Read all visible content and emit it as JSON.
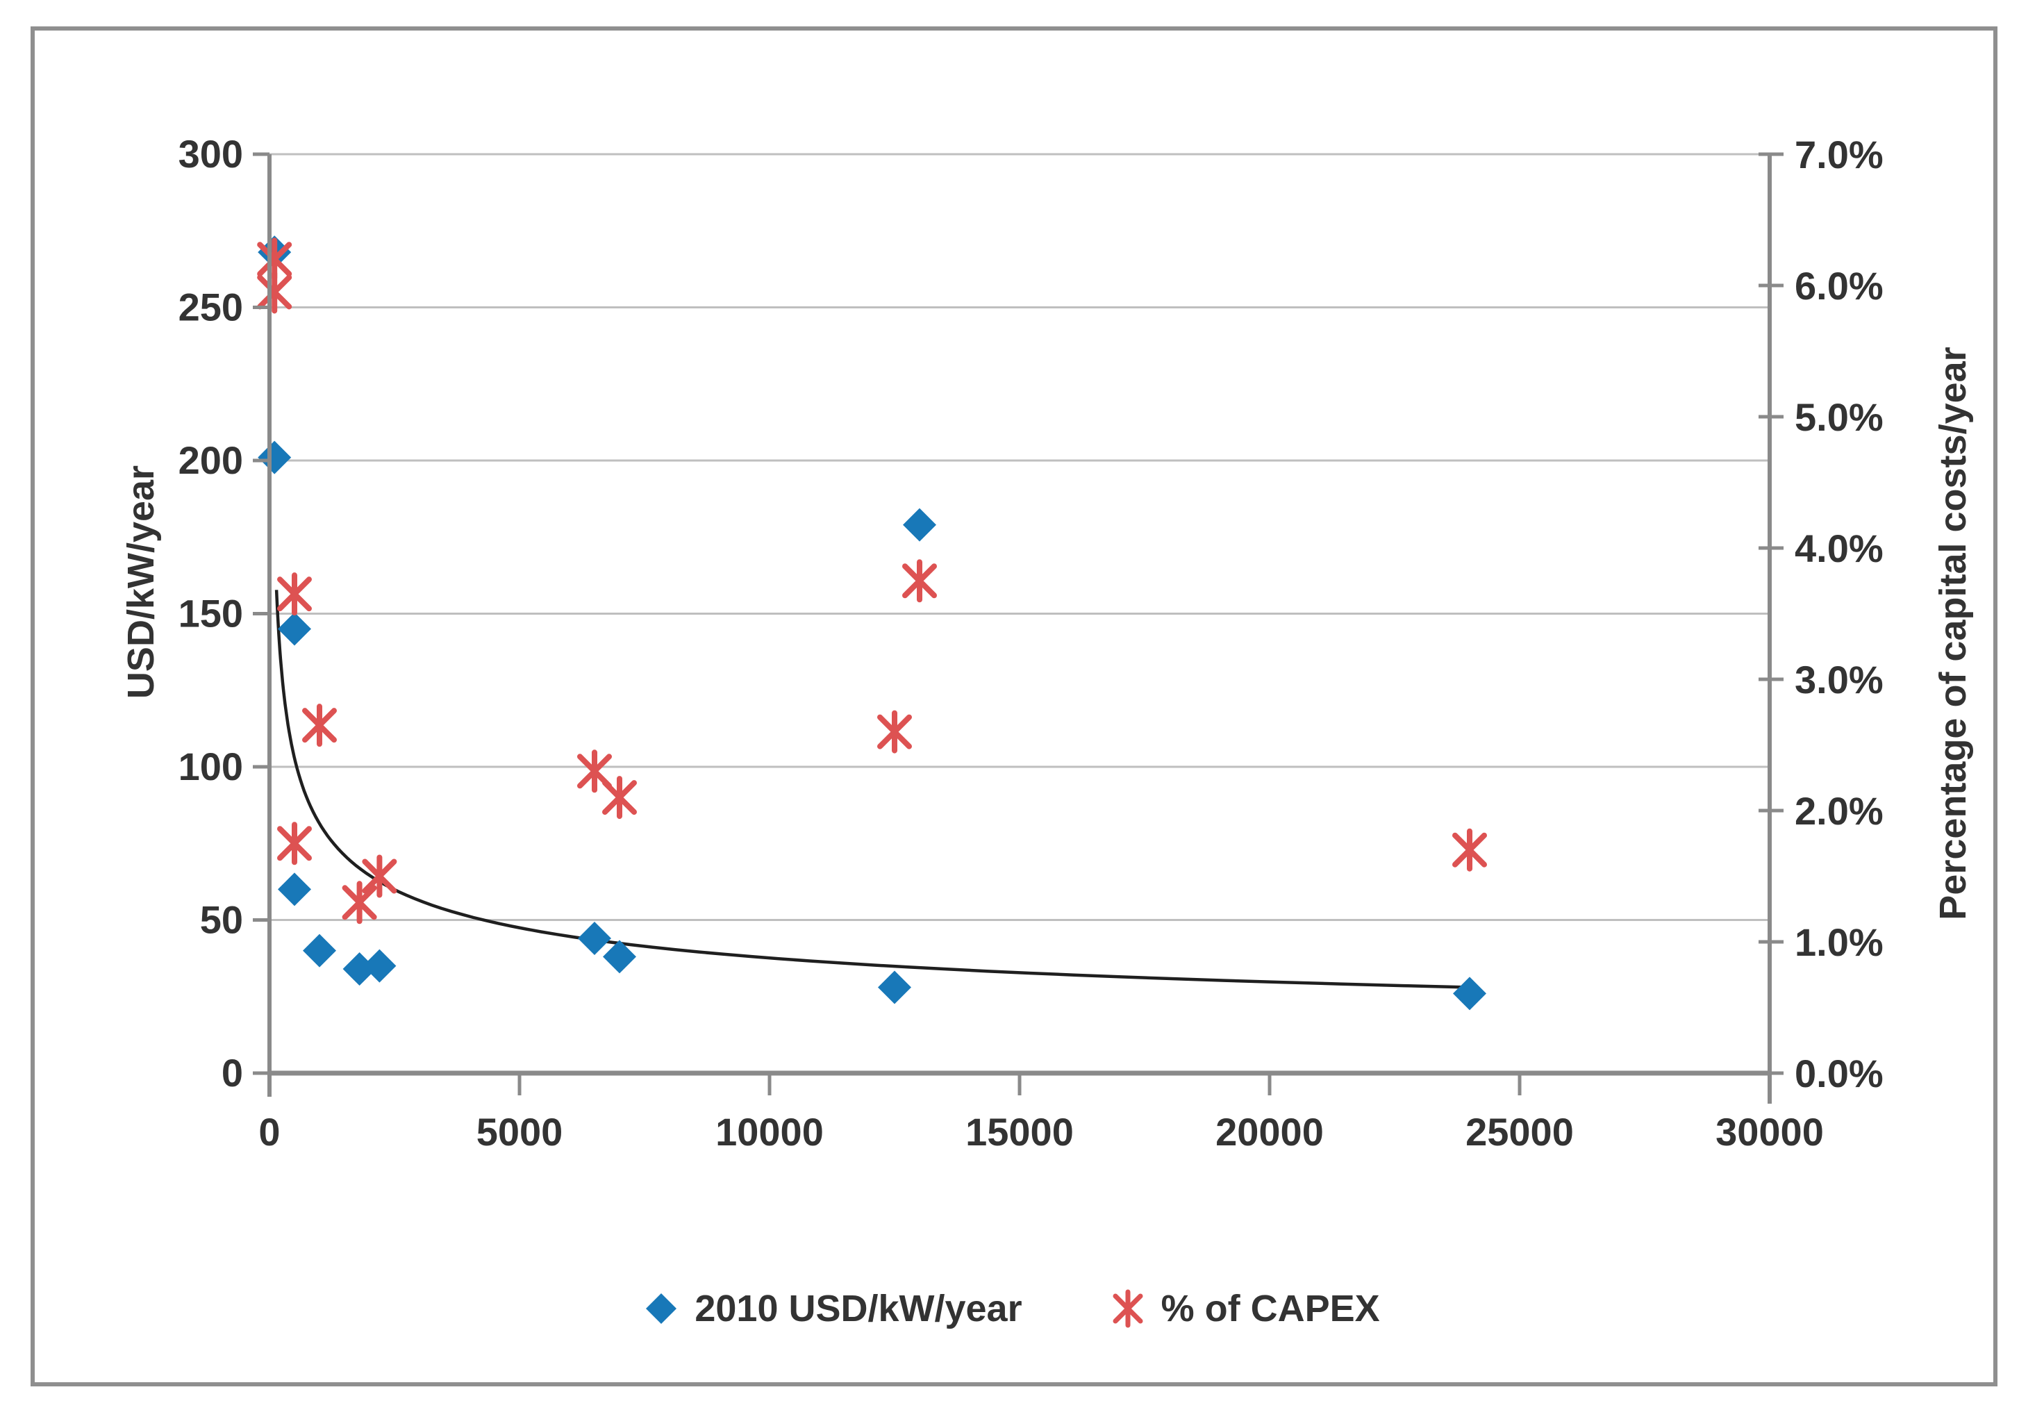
{
  "figure": {
    "background": "#ffffff",
    "border_color": "#8f8f8f"
  },
  "chart_data": {
    "type": "scatter",
    "title": "",
    "x_axis": {
      "label": "",
      "min": 0,
      "max": 30000,
      "ticks": [
        0,
        5000,
        10000,
        15000,
        20000,
        25000,
        30000
      ]
    },
    "y_axis_left": {
      "label": "USD/kW/year",
      "min": 0,
      "max": 300,
      "ticks": [
        0,
        50,
        100,
        150,
        200,
        250,
        300
      ]
    },
    "y_axis_right": {
      "label": "Percentage of capital costs/year",
      "min": 0,
      "max": 7,
      "ticks": [
        "0.0%",
        "1.0%",
        "2.0%",
        "3.0%",
        "4.0%",
        "5.0%",
        "6.0%",
        "7.0%"
      ]
    },
    "grid": "horizontal",
    "legend_position": "bottom",
    "series": [
      {
        "name": "2010 USD/kW/year",
        "axis": "left",
        "marker": "diamond",
        "color": "#1878b8",
        "points": [
          [
            100,
            268
          ],
          [
            100,
            201
          ],
          [
            500,
            145
          ],
          [
            500,
            60
          ],
          [
            1000,
            40
          ],
          [
            1800,
            34
          ],
          [
            2200,
            35
          ],
          [
            6500,
            44
          ],
          [
            7000,
            38
          ],
          [
            12500,
            28
          ],
          [
            13000,
            179
          ],
          [
            24000,
            26
          ]
        ]
      },
      {
        "name": "% of CAPEX",
        "axis": "right",
        "marker": "asterisk",
        "color": "#dd5252",
        "points": [
          [
            100,
            6.2
          ],
          [
            100,
            5.95
          ],
          [
            500,
            3.65
          ],
          [
            500,
            1.75
          ],
          [
            1000,
            2.65
          ],
          [
            1800,
            1.3
          ],
          [
            2200,
            1.5
          ],
          [
            6500,
            2.3
          ],
          [
            7000,
            2.1
          ],
          [
            12500,
            2.6
          ],
          [
            13000,
            3.75
          ],
          [
            24000,
            1.7
          ]
        ]
      }
    ],
    "trendline": {
      "series": "2010 USD/kW/year",
      "type": "power",
      "coefficient": 830,
      "exponent": -0.336,
      "x_start": 140,
      "x_end": 24000,
      "color": "#1f1f1f"
    }
  }
}
